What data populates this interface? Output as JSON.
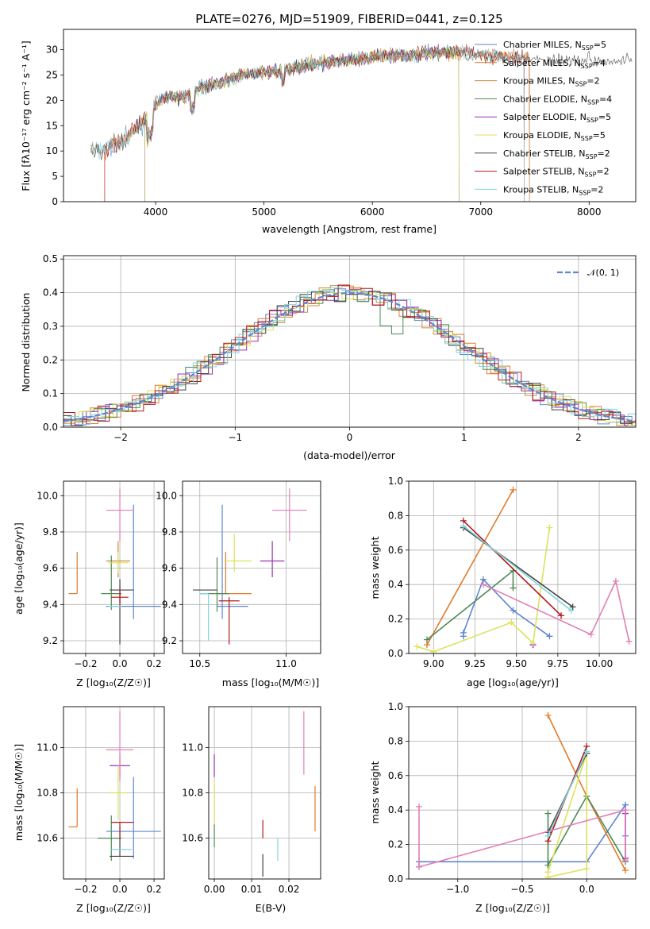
{
  "title": "PLATE=0276, MJD=51909, FIBERID=0441, z=0.125",
  "colors": {
    "chabrier_miles": "#5f86d0",
    "salpeter_miles": "#e07b2a",
    "kroupa_miles": "#cd8a3c",
    "chabrier_elodie": "#4e8a55",
    "salpeter_elodie": "#9b30b5",
    "kroupa_elodie": "#dce25a",
    "chabrier_stelib": "#444444",
    "salpeter_stelib": "#b01a1a",
    "kroupa_stelib": "#80d6dc",
    "pink": "#e27fb7",
    "gaussian": "#5f86d0"
  },
  "chart_data": [
    {
      "id": "spectrum",
      "type": "line",
      "title": "PLATE=0276, MJD=51909, FIBERID=0441, z=0.125",
      "xlabel": "wavelength [Angstrom, rest frame]",
      "ylabel": "Flux [fλ10⁻¹⁷ erg cm⁻² s⁻¹ A⁻¹]",
      "xlim": [
        3150,
        8430
      ],
      "ylim": [
        0,
        34
      ],
      "xticks": [
        "4000",
        "5000",
        "6000",
        "7000",
        "8000"
      ],
      "yticks": [
        "0",
        "5",
        "10",
        "15",
        "20",
        "25",
        "30"
      ],
      "grid": false,
      "legend": "top-right",
      "x": [
        3400,
        3500,
        3600,
        3700,
        3800,
        3900,
        4000,
        4100,
        4200,
        4300,
        4400,
        4600,
        4800,
        5000,
        5200,
        5400,
        5600,
        5800,
        6000,
        6200,
        6400,
        6600,
        6800,
        7000,
        7200,
        7400,
        7500
      ],
      "y": [
        10.5,
        10,
        11,
        12,
        14,
        16,
        19,
        21,
        20.5,
        21,
        22.5,
        23.5,
        25,
        25.5,
        26,
        27,
        27.5,
        28,
        28.5,
        29,
        29,
        29.5,
        29.5,
        29,
        28.5,
        28.5,
        28
      ],
      "series": [
        {
          "name": "Chabrier MILES, N_SSP=5",
          "xmax": 7450
        },
        {
          "name": "Salpeter MILES, N_SSP=4",
          "xmin": 3530,
          "xmax": 7450
        },
        {
          "name": "Kroupa MILES, N_SSP=2",
          "xmax": 7450
        },
        {
          "name": "Chabrier ELODIE, N_SSP=4",
          "xmin": 3900,
          "xmax": 6800
        },
        {
          "name": "Salpeter ELODIE, N_SSP=5",
          "xmin": 3900,
          "xmax": 6800
        },
        {
          "name": "Kroupa ELODIE, N_SSP=5",
          "xmin": 3900,
          "xmax": 6800
        },
        {
          "name": "Chabrier STELIB, N_SSP=2",
          "xmin": 3400,
          "xmax": 8400
        },
        {
          "name": "Salpeter STELIB, N_SSP=2",
          "xmin": 3530,
          "xmax": 7400
        },
        {
          "name": "Kroupa STELIB, N_SSP=2",
          "xmin": 3400,
          "xmax": 7400
        }
      ]
    },
    {
      "id": "residuals",
      "type": "line",
      "xlabel": "(data-model)/error",
      "ylabel": "Normed distribution",
      "xlim": [
        -2.5,
        2.5
      ],
      "ylim": [
        0,
        0.51
      ],
      "xticks": [
        "−2",
        "−1",
        "0",
        "1",
        "2"
      ],
      "yticks": [
        "0.0",
        "0.1",
        "0.2",
        "0.3",
        "0.4",
        "0.5"
      ],
      "grid": true,
      "legend": "top-right",
      "gaussian_label": "𝒩(0, 1)"
    },
    {
      "id": "age_vs_Z",
      "type": "scatter",
      "xlabel": "Z [log₁₀(Z/Z☉)]",
      "ylabel": "age  [log₁₀(age/yr)]",
      "xlim": [
        -0.33,
        0.26
      ],
      "ylim": [
        9.13,
        10.08
      ],
      "xticks": [
        "−0.2",
        "0.0",
        "0.2"
      ],
      "yticks": [
        "9.2",
        "9.4",
        "9.6",
        "9.8",
        "10.0"
      ],
      "points": [
        {
          "color": "#5f86d0",
          "x": 0.08,
          "y": 9.39,
          "xe": [
            0.16,
            0.16
          ],
          "ye": [
            0.07,
            0.56
          ]
        },
        {
          "color": "#e07b2a",
          "x": -0.25,
          "y": 9.46,
          "xe": [
            0.05,
            0
          ],
          "ye": [
            0,
            0.23
          ]
        },
        {
          "color": "#cd8a3c",
          "x": -0.01,
          "y": 9.64,
          "xe": [
            0.07,
            0.07
          ],
          "ye": [
            0.09,
            0.11
          ]
        },
        {
          "color": "#4e8a55",
          "x": -0.05,
          "y": 9.46,
          "xe": [
            0.06,
            0.06
          ],
          "ye": [
            0.09,
            0.21
          ]
        },
        {
          "color": "#9b30b5",
          "x": 0.0,
          "y": 9.46,
          "xe": [
            0,
            0
          ],
          "ye": [
            0.05,
            0.05
          ]
        },
        {
          "color": "#dce25a",
          "x": -0.01,
          "y": 9.63,
          "xe": [
            0.06,
            0.06
          ],
          "ye": [
            0.06,
            0.06
          ]
        },
        {
          "color": "#444444",
          "x": 0.0,
          "y": 9.48,
          "xe": [
            0.06,
            0.08
          ],
          "ye": [
            0.3,
            0.06
          ]
        },
        {
          "color": "#b01a1a",
          "x": 0.0,
          "y": 9.44,
          "xe": [
            0.05,
            0.05
          ],
          "ye": [
            0.04,
            0.04
          ]
        },
        {
          "color": "#80d6dc",
          "x": 0.01,
          "y": 9.39,
          "xe": [
            0.08,
            0
          ],
          "ye": [
            0,
            0
          ]
        },
        {
          "color": "#e27fb7",
          "x": 0.0,
          "y": 9.92,
          "xe": [
            0.08,
            0.08
          ],
          "ye": [
            0.17,
            0.12
          ]
        }
      ]
    },
    {
      "id": "age_vs_mass",
      "type": "scatter",
      "xlabel": "mass [log₁₀(M/M☉)]",
      "ylabel": "",
      "xlim": [
        10.4,
        11.2
      ],
      "ylim": [
        9.13,
        10.08
      ],
      "xticks": [
        "10.5",
        "11.0"
      ],
      "yticks": [
        "9.2",
        "9.4",
        "9.6",
        "9.8",
        "10.0"
      ],
      "points": [
        {
          "color": "#5f86d0",
          "x": 10.63,
          "y": 9.39,
          "xe": [
            0.03,
            0.15
          ],
          "ye": [
            0.07,
            0.56
          ]
        },
        {
          "color": "#e07b2a",
          "x": 10.65,
          "y": 9.46,
          "xe": [
            0.05,
            0.15
          ],
          "ye": [
            0,
            0.23
          ]
        },
        {
          "color": "#4e8a55",
          "x": 10.6,
          "y": 9.46,
          "xe": [
            0.1,
            0.07
          ],
          "ye": [
            0.1,
            0.2
          ]
        },
        {
          "color": "#9b30b5",
          "x": 10.92,
          "y": 9.64,
          "xe": [
            0.07,
            0.07
          ],
          "ye": [
            0.09,
            0.11
          ]
        },
        {
          "color": "#dce25a",
          "x": 10.7,
          "y": 9.64,
          "xe": [
            0.06,
            0.1
          ],
          "ye": [
            0.06,
            0.15
          ]
        },
        {
          "color": "#444444",
          "x": 10.52,
          "y": 9.48,
          "xe": [
            0.06,
            0.08
          ],
          "ye": [
            0,
            0
          ]
        },
        {
          "color": "#b01a1a",
          "x": 10.67,
          "y": 9.42,
          "xe": [
            0.06,
            0.06
          ],
          "ye": [
            0.24,
            0.02
          ]
        },
        {
          "color": "#80d6dc",
          "x": 10.55,
          "y": 9.46,
          "xe": [
            0.05,
            0
          ],
          "ye": [
            0.26,
            0
          ]
        },
        {
          "color": "#e27fb7",
          "x": 11.02,
          "y": 9.92,
          "xe": [
            0.1,
            0.1
          ],
          "ye": [
            0.17,
            0.12
          ]
        }
      ]
    },
    {
      "id": "weight_vs_age",
      "type": "line",
      "xlabel": "age  [log₁₀(age/yr)]",
      "ylabel": "mass weight",
      "xlim": [
        8.85,
        10.22
      ],
      "ylim": [
        0,
        1.0
      ],
      "xticks": [
        "9.00",
        "9.25",
        "9.50",
        "9.75",
        "10.00"
      ],
      "yticks": [
        "0.0",
        "0.2",
        "0.4",
        "0.6",
        "0.8",
        "1.0"
      ],
      "grid": true,
      "series": [
        {
          "color": "#5f86d0",
          "x": [
            9.18,
            9.18,
            9.3,
            9.48,
            9.7
          ],
          "y": [
            0.1,
            0.12,
            0.43,
            0.25,
            0.1
          ]
        },
        {
          "color": "#e07b2a",
          "x": [
            8.96,
            9.48
          ],
          "y": [
            0.05,
            0.95
          ]
        },
        {
          "color": "#4e8a55",
          "x": [
            8.96,
            9.48,
            9.48
          ],
          "y": [
            0.08,
            0.48,
            0.38
          ]
        },
        {
          "color": "#9b30b5",
          "x": [
            9.6,
            9.6
          ],
          "y": [
            0.05,
            0.05
          ]
        },
        {
          "color": "#dce25a",
          "x": [
            8.9,
            9.0,
            9.47,
            9.6,
            9.7
          ],
          "y": [
            0.04,
            0.01,
            0.18,
            0.06,
            0.73
          ]
        },
        {
          "color": "#444444",
          "x": [
            9.18,
            9.84
          ],
          "y": [
            0.73,
            0.27
          ]
        },
        {
          "color": "#b01a1a",
          "x": [
            9.18,
            9.77
          ],
          "y": [
            0.77,
            0.22
          ]
        },
        {
          "color": "#80d6dc",
          "x": [
            9.18,
            9.83
          ],
          "y": [
            0.74,
            0.25
          ]
        },
        {
          "color": "#e27fb7",
          "x": [
            9.3,
            9.95,
            10.1,
            10.18
          ],
          "y": [
            0.4,
            0.11,
            0.42,
            0.07
          ]
        }
      ]
    },
    {
      "id": "mass_vs_Z",
      "type": "scatter",
      "xlabel": "Z [log₁₀(Z/Z☉)]",
      "ylabel": "mass [log₁₀(M/M☉)]",
      "xlim": [
        -0.33,
        0.26
      ],
      "ylim": [
        10.42,
        11.18
      ],
      "xticks": [
        "−0.2",
        "0.0",
        "0.2"
      ],
      "yticks": [
        "10.6",
        "10.8",
        "11.0"
      ],
      "points": [
        {
          "color": "#5f86d0",
          "x": 0.08,
          "y": 10.63,
          "xe": [
            0.16,
            0.16
          ],
          "ye": [
            0.12,
            0.24
          ]
        },
        {
          "color": "#e07b2a",
          "x": -0.25,
          "y": 10.65,
          "xe": [
            0.05,
            0
          ],
          "ye": [
            0,
            0.17
          ]
        },
        {
          "color": "#4e8a55",
          "x": -0.05,
          "y": 10.6,
          "xe": [
            0.08,
            0.06
          ],
          "ye": [
            0.1,
            0.1
          ]
        },
        {
          "color": "#9b30b5",
          "x": 0.0,
          "y": 10.92,
          "xe": [
            0.06,
            0.06
          ],
          "ye": [
            0.05,
            0.05
          ]
        },
        {
          "color": "#dce25a",
          "x": -0.01,
          "y": 10.8,
          "xe": [
            0.05,
            0.05
          ],
          "ye": [
            0.12,
            0.12
          ]
        },
        {
          "color": "#444444",
          "x": 0.0,
          "y": 10.52,
          "xe": [
            0.06,
            0.08
          ],
          "ye": [
            0,
            0.13
          ]
        },
        {
          "color": "#b01a1a",
          "x": 0.0,
          "y": 10.67,
          "xe": [
            0.05,
            0.08
          ],
          "ye": [
            0.07,
            0
          ]
        },
        {
          "color": "#80d6dc",
          "x": 0.01,
          "y": 10.55,
          "xe": [
            0.06,
            0.06
          ],
          "ye": [
            0,
            0
          ]
        },
        {
          "color": "#e27fb7",
          "x": 0.0,
          "y": 10.99,
          "xe": [
            0.08,
            0.08
          ],
          "ye": [
            0.14,
            0.17
          ]
        }
      ]
    },
    {
      "id": "mass_vs_EBV",
      "type": "scatter",
      "xlabel": "E(B-V)",
      "ylabel": "",
      "xlim": [
        -0.0015,
        0.0285
      ],
      "ylim": [
        10.42,
        11.18
      ],
      "xticks": [
        "0.00",
        "0.01",
        "0.02"
      ],
      "yticks": [
        "10.6",
        "10.8",
        "11.0"
      ],
      "points": [
        {
          "color": "#9b30b5",
          "x": 0.0,
          "y": 10.92,
          "xe": [
            0,
            0
          ],
          "ye": [
            0.05,
            0.05
          ]
        },
        {
          "color": "#dce25a",
          "x": 0.0,
          "y": 10.75,
          "xe": [
            0,
            0
          ],
          "ye": [
            0.1,
            0.1
          ]
        },
        {
          "color": "#4e8a55",
          "x": 0.0,
          "y": 10.61,
          "xe": [
            0,
            0
          ],
          "ye": [
            0.05,
            0.05
          ]
        },
        {
          "color": "#b01a1a",
          "x": 0.013,
          "y": 10.64,
          "xe": [
            0,
            0
          ],
          "ye": [
            0.04,
            0.04
          ]
        },
        {
          "color": "#444444",
          "x": 0.013,
          "y": 10.48,
          "xe": [
            0,
            0
          ],
          "ye": [
            0.05,
            0.05
          ]
        },
        {
          "color": "#80d6dc",
          "x": 0.017,
          "y": 10.55,
          "xe": [
            0,
            0
          ],
          "ye": [
            0.05,
            0.05
          ]
        },
        {
          "color": "#e27fb7",
          "x": 0.024,
          "y": 11.01,
          "xe": [
            0,
            0
          ],
          "ye": [
            0.13,
            0.15
          ]
        },
        {
          "color": "#e07b2a",
          "x": 0.027,
          "y": 10.73,
          "xe": [
            0,
            0
          ],
          "ye": [
            0.1,
            0.1
          ]
        }
      ]
    },
    {
      "id": "weight_vs_Z",
      "type": "line",
      "xlabel": "Z [log₁₀(Z/Z☉)]",
      "ylabel": "mass weight",
      "xlim": [
        -1.38,
        0.38
      ],
      "ylim": [
        0,
        1.0
      ],
      "xticks": [
        "−1.0",
        "−0.5",
        "0.0"
      ],
      "yticks": [
        "0.0",
        "0.2",
        "0.4",
        "0.6",
        "0.8",
        "1.0"
      ],
      "grid": true,
      "series": [
        {
          "color": "#5f86d0",
          "x": [
            -1.3,
            -0.3,
            0.0,
            0.3,
            0.3
          ],
          "y": [
            0.1,
            0.1,
            0.1,
            0.43,
            0.25
          ]
        },
        {
          "color": "#e07b2a",
          "x": [
            -0.3,
            0.0,
            0.3
          ],
          "y": [
            0.95,
            0.48,
            0.05
          ]
        },
        {
          "color": "#4e8a55",
          "x": [
            -0.3,
            -0.3,
            0.0,
            0.3
          ],
          "y": [
            0.38,
            0.08,
            0.48,
            0.1
          ]
        },
        {
          "color": "#9b30b5",
          "x": [
            0.3,
            0.3
          ],
          "y": [
            0.12,
            0.38
          ]
        },
        {
          "color": "#dce25a",
          "x": [
            -0.3,
            0.0,
            0.0,
            -0.3
          ],
          "y": [
            0.04,
            0.73,
            0.06,
            0.01
          ]
        },
        {
          "color": "#444444",
          "x": [
            -0.3,
            0.0
          ],
          "y": [
            0.27,
            0.73
          ]
        },
        {
          "color": "#b01a1a",
          "x": [
            -0.3,
            0.0
          ],
          "y": [
            0.22,
            0.77
          ]
        },
        {
          "color": "#80d6dc",
          "x": [
            -0.3,
            0.0
          ],
          "y": [
            0.25,
            0.74
          ]
        },
        {
          "color": "#e27fb7",
          "x": [
            -1.3,
            -1.3,
            -1.3,
            0.3,
            0.3
          ],
          "y": [
            0.07,
            0.42,
            0.07,
            0.4,
            0.11
          ]
        }
      ]
    }
  ]
}
